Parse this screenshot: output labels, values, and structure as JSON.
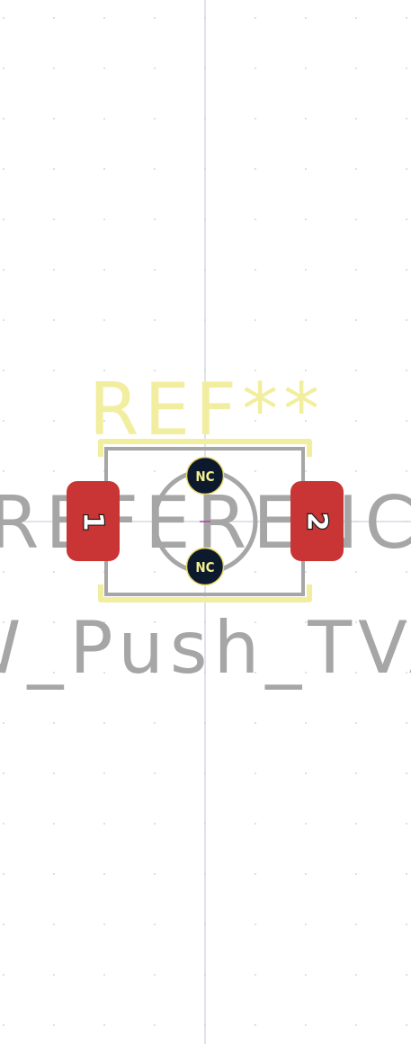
{
  "footprint": {
    "reference_designator": "REF**",
    "fab_reference_text": "${REFERENCE}",
    "value_text": "SW_Push_TVAF"
  },
  "pads": [
    {
      "number": "1"
    },
    {
      "number": "2"
    }
  ],
  "nc_pads": [
    {
      "label": "NC"
    },
    {
      "label": "NC"
    }
  ],
  "colors": {
    "background": "#ffffff",
    "grid_dot": "#c9c9c9",
    "crosshair": "#c6c6d9",
    "silkscreen": "#f2ee9f",
    "fab_layer": "#a6a6a6",
    "smd_pad": "#c93434",
    "nc_pad_fill": "#0d1a2e",
    "nc_pad_ring": "#e9d96b"
  }
}
